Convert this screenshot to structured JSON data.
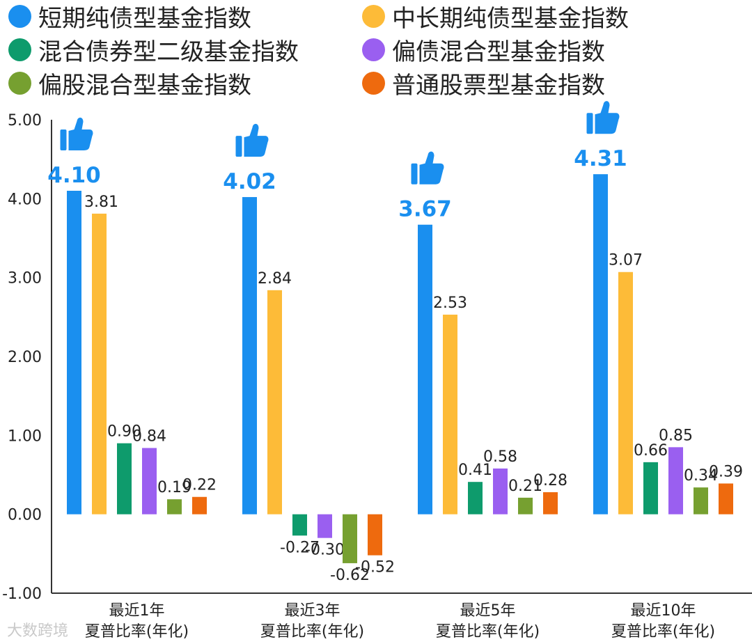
{
  "watermark": "大数跨境",
  "chart_data": {
    "type": "bar",
    "categories": [
      "最近1年\n夏普比率(年化)",
      "最近3年\n夏普比率(年化)",
      "最近5年\n夏普比率(年化)",
      "最近10年\n夏普比率(年化)"
    ],
    "series": [
      {
        "name": "短期纯债型基金指数",
        "color": "#1a8fef",
        "values": [
          4.1,
          4.02,
          3.67,
          4.31
        ]
      },
      {
        "name": "中长期纯债型基金指数",
        "color": "#fdbb38",
        "values": [
          3.81,
          2.84,
          2.53,
          3.07
        ]
      },
      {
        "name": "混合债券型二级基金指数",
        "color": "#0e9b6c",
        "values": [
          0.9,
          -0.27,
          0.41,
          0.66
        ]
      },
      {
        "name": "偏债混合型基金指数",
        "color": "#9a5ff0",
        "values": [
          0.84,
          -0.3,
          0.58,
          0.85
        ]
      },
      {
        "name": "偏股混合型基金指数",
        "color": "#76a030",
        "values": [
          0.19,
          -0.62,
          0.21,
          0.34
        ]
      },
      {
        "name": "普通股票型基金指数",
        "color": "#ee6a0e",
        "values": [
          0.22,
          -0.52,
          0.28,
          0.39
        ]
      }
    ],
    "value_labels": [
      [
        "4.10",
        "3.81",
        "0.90",
        "0.84",
        "0.19",
        "0.22"
      ],
      [
        "4.02",
        "2.84",
        "-0.27",
        "-0.30",
        "-0.62",
        "-0.52"
      ],
      [
        "3.67",
        "2.53",
        "0.41",
        "0.58",
        "0.21",
        "0.28"
      ],
      [
        "4.31",
        "3.07",
        "0.66",
        "0.85",
        "0.34",
        "0.39"
      ]
    ],
    "y_ticks": [
      "5.00",
      "4.00",
      "3.00",
      "2.00",
      "1.00",
      "0.00",
      "-1.00"
    ],
    "ylim": [
      -1,
      5
    ],
    "highlight_series": 0,
    "highlight_color": "#1a8fef",
    "highlight_icon": "thumbs-up-icon",
    "grid": false,
    "legend_position": "top"
  }
}
